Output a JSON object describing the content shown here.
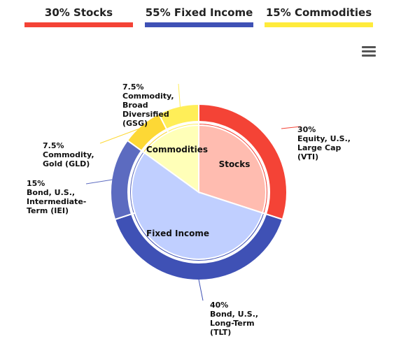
{
  "legend": [
    {
      "label": "30% Stocks",
      "color": "#f44336"
    },
    {
      "label": "55% Fixed Income",
      "color": "#3f51b5"
    },
    {
      "label": "15% Commodities",
      "color": "#ffeb3b"
    }
  ],
  "chart_data": {
    "type": "pie",
    "inner": [
      {
        "name": "Stocks",
        "value": 30,
        "color": "#ffbcb0"
      },
      {
        "name": "Fixed Income",
        "value": 55,
        "color": "#c0cfff"
      },
      {
        "name": "Commodities",
        "value": 15,
        "color": "#ffffb8"
      }
    ],
    "outer": [
      {
        "label": [
          "30%",
          "Equity, U.S.,",
          "Large Cap",
          "(VTI)"
        ],
        "value": 30,
        "color": "#f44336"
      },
      {
        "label": [
          "40%",
          "Bond, U.S.,",
          "Long-Term",
          "(TLT)"
        ],
        "value": 40,
        "color": "#3f51b5"
      },
      {
        "label": [
          "15%",
          "Bond, U.S.,",
          "Intermediate-",
          "Term (IEI)"
        ],
        "value": 15,
        "color": "#5c6bc0"
      },
      {
        "label": [
          "7.5%",
          "Commodity,",
          "Gold (GLD)"
        ],
        "value": 7.5,
        "color": "#fdd835"
      },
      {
        "label": [
          "7.5%",
          "Commodity,",
          "Broad",
          "Diversified",
          "(GSG)"
        ],
        "value": 7.5,
        "color": "#ffee58"
      }
    ]
  },
  "menu_icon": "hamburger-menu-icon"
}
